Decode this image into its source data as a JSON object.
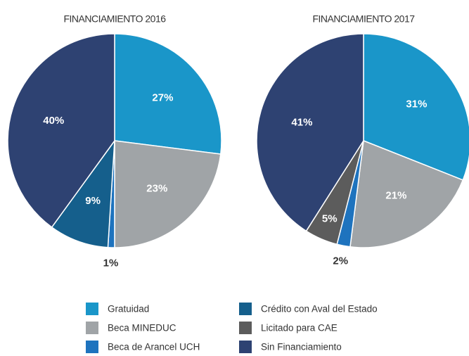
{
  "chart_data": [
    {
      "type": "pie",
      "title": "FINANCIAMIENTO 2016",
      "categories": [
        "Gratuidad",
        "Beca MINEDUC",
        "Beca de Arancel UCH",
        "Crédito con Aval del Estado",
        "Sin Financiamiento"
      ],
      "values": [
        27,
        23,
        1,
        9,
        40
      ],
      "value_labels": [
        "27%",
        "23%",
        "1%",
        "9%",
        "40%"
      ],
      "colors": [
        "#1a96c9",
        "#a0a4a7",
        "#1e73be",
        "#155f8c",
        "#2e4272"
      ]
    },
    {
      "type": "pie",
      "title": "FINANCIAMIENTO 2017",
      "categories": [
        "Gratuidad",
        "Beca MINEDUC",
        "Beca de Arancel UCH",
        "Licitado para CAE",
        "Sin Financiamiento"
      ],
      "values": [
        31,
        21,
        2,
        5,
        41
      ],
      "value_labels": [
        "31%",
        "21%",
        "2%",
        "5%",
        "41%"
      ],
      "colors": [
        "#1a96c9",
        "#a0a4a7",
        "#1e73be",
        "#5c5c5c",
        "#2e4272"
      ]
    }
  ],
  "legend": {
    "names": [
      "Gratuidad",
      "Beca MINEDUC",
      "Beca de Arancel UCH",
      "Crédito con Aval del Estado",
      "Licitado para CAE",
      "Sin Financiamiento"
    ],
    "colors": [
      "#1a96c9",
      "#a0a4a7",
      "#1e73be",
      "#155f8c",
      "#5c5c5c",
      "#2e4272"
    ]
  }
}
